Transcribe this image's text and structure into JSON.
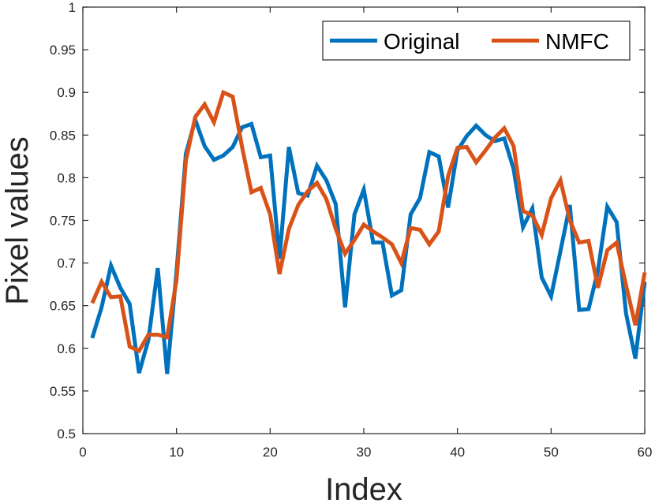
{
  "chart_data": {
    "type": "line",
    "xlabel": "Index",
    "ylabel": "Pixel values",
    "xlim": [
      0,
      60
    ],
    "ylim": [
      0.5,
      1
    ],
    "xticks": [
      "0",
      "10",
      "20",
      "30",
      "40",
      "50",
      "60"
    ],
    "yticks": [
      "0.5",
      "0.55",
      "0.6",
      "0.65",
      "0.7",
      "0.75",
      "0.8",
      "0.85",
      "0.9",
      "0.95",
      "1"
    ],
    "grid": false,
    "legend_position": "top-right",
    "x": [
      1,
      2,
      3,
      4,
      5,
      6,
      7,
      8,
      9,
      10,
      11,
      12,
      13,
      14,
      15,
      16,
      17,
      18,
      19,
      20,
      21,
      22,
      23,
      24,
      25,
      26,
      27,
      28,
      29,
      30,
      31,
      32,
      33,
      34,
      35,
      36,
      37,
      38,
      39,
      40,
      41,
      42,
      43,
      44,
      45,
      46,
      47,
      48,
      49,
      50,
      51,
      52,
      53,
      54,
      55,
      56,
      57,
      58,
      59,
      60
    ],
    "series": [
      {
        "name": "Original",
        "color": "#0072BD",
        "values": [
          0.612,
          0.648,
          0.697,
          0.671,
          0.652,
          0.571,
          0.61,
          0.694,
          0.57,
          0.69,
          0.828,
          0.868,
          0.837,
          0.821,
          0.826,
          0.836,
          0.859,
          0.863,
          0.824,
          0.826,
          0.705,
          0.836,
          0.782,
          0.779,
          0.814,
          0.797,
          0.769,
          0.648,
          0.757,
          0.786,
          0.724,
          0.724,
          0.662,
          0.668,
          0.757,
          0.776,
          0.83,
          0.825,
          0.765,
          0.832,
          0.849,
          0.861,
          0.85,
          0.843,
          0.846,
          0.81,
          0.742,
          0.764,
          0.683,
          0.661,
          0.714,
          0.768,
          0.645,
          0.646,
          0.691,
          0.766,
          0.748,
          0.641,
          0.588,
          0.678
        ]
      },
      {
        "name": "NMFC",
        "color": "#D95319",
        "values": [
          0.653,
          0.678,
          0.66,
          0.661,
          0.602,
          0.597,
          0.616,
          0.616,
          0.613,
          0.68,
          0.82,
          0.871,
          0.886,
          0.865,
          0.9,
          0.895,
          0.836,
          0.783,
          0.788,
          0.757,
          0.687,
          0.74,
          0.768,
          0.784,
          0.794,
          0.775,
          0.74,
          0.711,
          0.727,
          0.745,
          0.737,
          0.73,
          0.722,
          0.7,
          0.741,
          0.739,
          0.722,
          0.737,
          0.802,
          0.835,
          0.836,
          0.818,
          0.832,
          0.847,
          0.858,
          0.837,
          0.761,
          0.756,
          0.733,
          0.776,
          0.797,
          0.75,
          0.724,
          0.726,
          0.671,
          0.715,
          0.724,
          0.674,
          0.627,
          0.689
        ]
      }
    ]
  }
}
